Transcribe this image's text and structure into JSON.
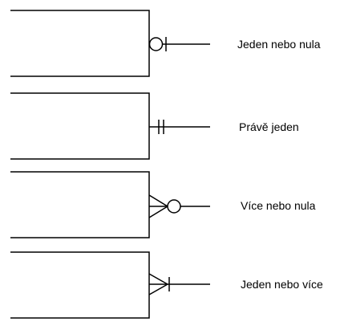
{
  "notations": [
    {
      "label": "Jeden nebo nula",
      "icon": "zero-or-one-notation-icon"
    },
    {
      "label": "Právě jeden",
      "icon": "exactly-one-notation-icon"
    },
    {
      "label": "Více nebo nula",
      "icon": "zero-or-many-notation-icon"
    },
    {
      "label": "Jeden nebo více",
      "icon": "one-or-many-notation-icon"
    }
  ]
}
